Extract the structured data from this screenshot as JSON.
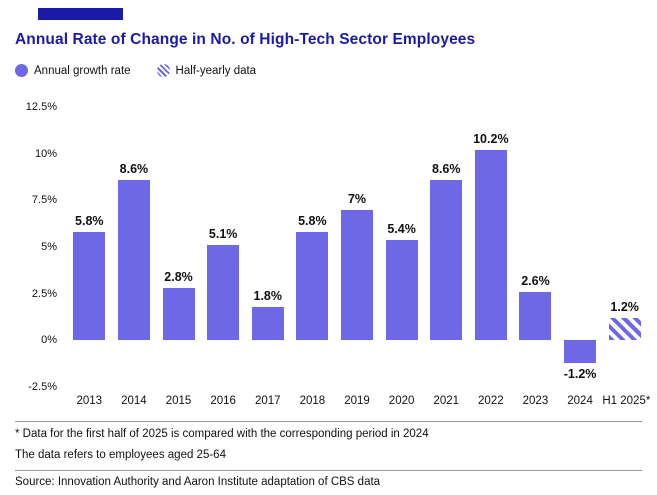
{
  "colors": {
    "navy": "#1b1aa6",
    "bar_purple": "#6e68e6"
  },
  "header": {
    "title": "Annual Rate of Change in No. of High-Tech Sector Employees"
  },
  "legend": [
    {
      "label": "Annual growth rate",
      "style": "solid"
    },
    {
      "label": "Half-yearly data",
      "style": "hatched"
    }
  ],
  "chart_data": {
    "type": "bar",
    "title": "Annual Rate of Change in No. of High-Tech Sector Employees",
    "categories": [
      "2013",
      "2014",
      "2015",
      "2016",
      "2017",
      "2018",
      "2019",
      "2020",
      "2021",
      "2022",
      "2023",
      "2024",
      "H1 2025*"
    ],
    "values": [
      5.8,
      8.6,
      2.8,
      5.1,
      1.8,
      5.8,
      7,
      5.4,
      8.6,
      10.2,
      2.6,
      -1.2,
      1.2
    ],
    "data_labels": [
      "5.8%",
      "8.6%",
      "2.8%",
      "5.1%",
      "1.8%",
      "5.8%",
      "7%",
      "5.4%",
      "8.6%",
      "10.2%",
      "2.6%",
      "-1.2%",
      "1.2%"
    ],
    "hatched": [
      false,
      false,
      false,
      false,
      false,
      false,
      false,
      false,
      false,
      false,
      false,
      false,
      true
    ],
    "xlabel": "",
    "ylabel": "",
    "ylim": [
      -2.5,
      12.5
    ],
    "yticks": [
      12.5,
      10,
      7.5,
      5,
      2.5,
      0,
      -2.5
    ],
    "ytick_labels": [
      "12.5%",
      "10%",
      "7.5%",
      "5%",
      "2.5%",
      "0%",
      "-2.5%"
    ],
    "grid": false,
    "legend_position": "top-left"
  },
  "footnotes": {
    "line1": "* Data for the first half of 2025 is compared with the corresponding period in 2024",
    "line2": "The data refers to employees aged 25-64",
    "source": "Source: Innovation Authority and Aaron Institute adaptation of CBS data"
  }
}
